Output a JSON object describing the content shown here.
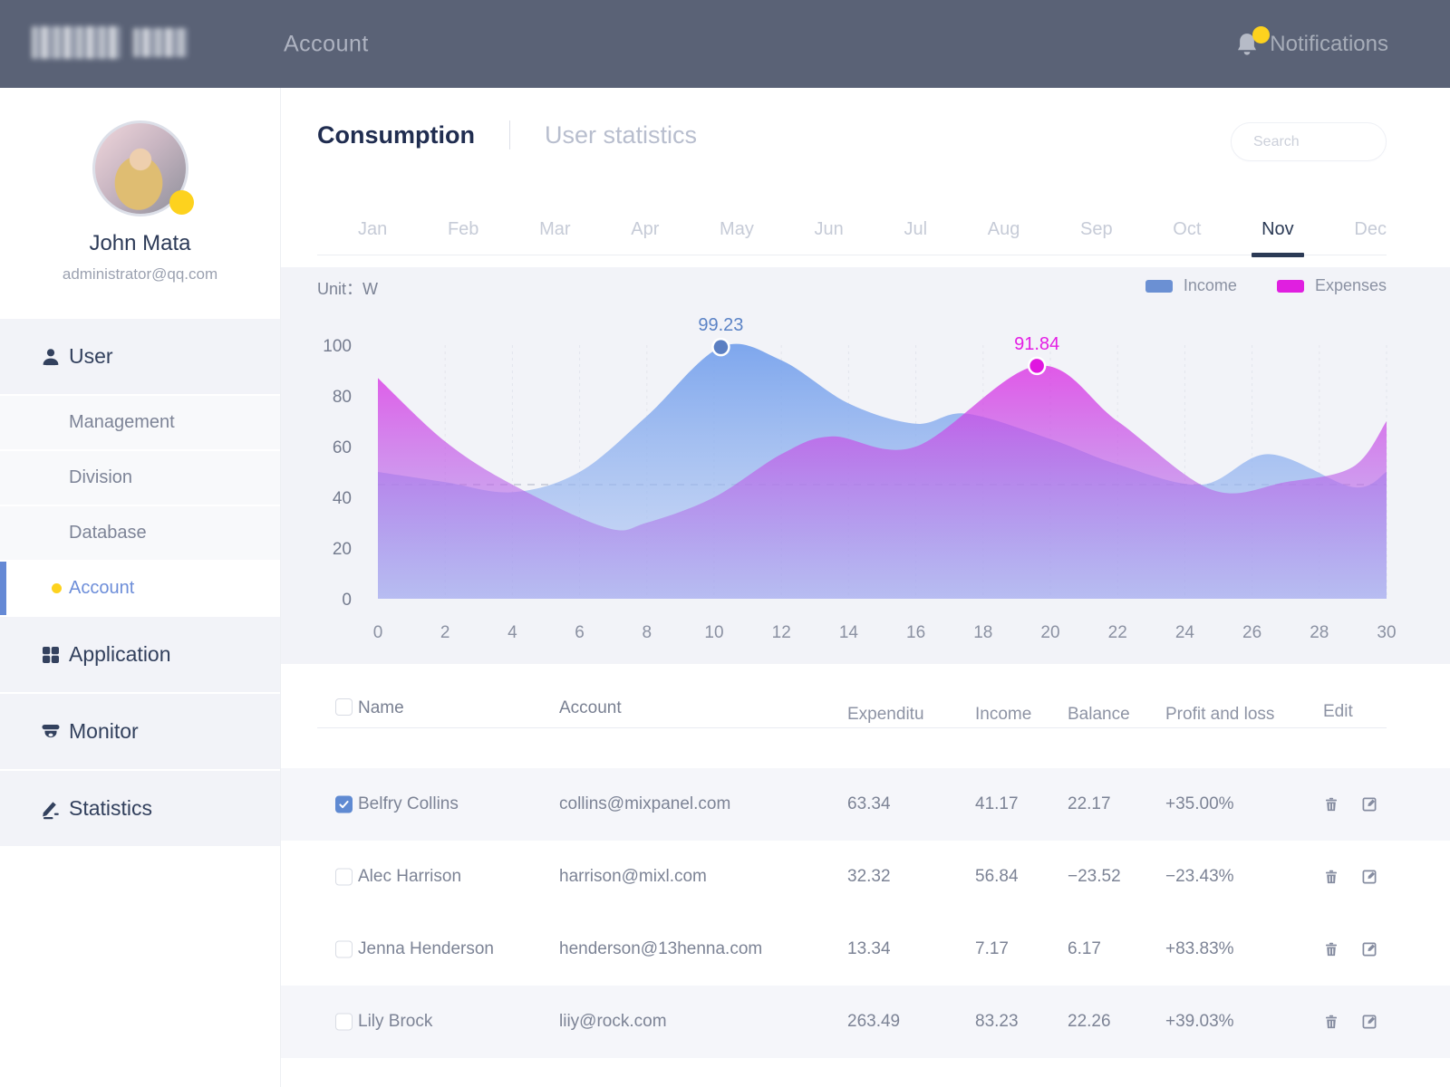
{
  "header": {
    "title": "Account",
    "notifications_label": "Notifications"
  },
  "sidebar": {
    "user": {
      "name": "John Mata",
      "email": "administrator@qq.com"
    },
    "menu": [
      {
        "id": "user",
        "label": "User",
        "type": "section",
        "icon": "user-icon"
      },
      {
        "id": "management",
        "label": "Management",
        "type": "sub"
      },
      {
        "id": "division",
        "label": "Division",
        "type": "sub"
      },
      {
        "id": "database",
        "label": "Database",
        "type": "sub"
      },
      {
        "id": "account",
        "label": "Account",
        "type": "sub",
        "active": true
      },
      {
        "id": "application",
        "label": "Application",
        "type": "section",
        "icon": "grid-icon"
      },
      {
        "id": "monitor",
        "label": "Monitor",
        "type": "section",
        "icon": "camera-icon"
      },
      {
        "id": "statistics",
        "label": "Statistics",
        "type": "section",
        "icon": "stats-icon"
      }
    ]
  },
  "tabs": {
    "active": "Consumption",
    "inactive": "User statistics"
  },
  "search": {
    "placeholder": "Search"
  },
  "months": {
    "items": [
      "Jan",
      "Feb",
      "Mar",
      "Apr",
      "May",
      "Jun",
      "Jul",
      "Aug",
      "Sep",
      "Oct",
      "Nov",
      "Dec"
    ],
    "active": "Nov"
  },
  "chart_data": {
    "type": "area",
    "unit_label": "Unit：W",
    "x_range": [
      0,
      30
    ],
    "y_range": [
      0,
      100
    ],
    "x_ticks": [
      0,
      2,
      4,
      6,
      8,
      10,
      12,
      14,
      16,
      18,
      20,
      22,
      24,
      26,
      28,
      30
    ],
    "y_ticks": [
      0,
      20,
      40,
      60,
      80,
      100
    ],
    "reference_line": 45,
    "grid": "vertical-dashed",
    "legend_position": "top-right",
    "legend": [
      {
        "name": "Income",
        "color": "#6b90d3"
      },
      {
        "name": "Expenses",
        "color": "#e01fe0"
      }
    ],
    "series": [
      {
        "name": "Income",
        "fill_top": "rgba(116,160,236,0.92)",
        "fill_bottom": "rgba(176,198,243,0.50)",
        "dot_color": "#5b7fc2",
        "label_color": "#5b83c6",
        "marker_point": [
          10.2,
          99.23
        ],
        "marker_label": "99.23",
        "points": [
          [
            0,
            50
          ],
          [
            2,
            46
          ],
          [
            4,
            42
          ],
          [
            6,
            50
          ],
          [
            8,
            72
          ],
          [
            10.2,
            99.23
          ],
          [
            12,
            94
          ],
          [
            14,
            77
          ],
          [
            16,
            69
          ],
          [
            17.5,
            73
          ],
          [
            20,
            63
          ],
          [
            22,
            53
          ],
          [
            24.5,
            45
          ],
          [
            26.5,
            57
          ],
          [
            29,
            44
          ],
          [
            30,
            50
          ]
        ]
      },
      {
        "name": "Expenses",
        "fill_top": "rgba(220,49,228,0.80)",
        "fill_bottom": "rgba(152,150,236,0.45)",
        "dot_color": "#e016e0",
        "label_color": "#e41ee4",
        "marker_point": [
          19.6,
          91.84
        ],
        "marker_label": "91.84",
        "points": [
          [
            0,
            87
          ],
          [
            2,
            62
          ],
          [
            4,
            45
          ],
          [
            6.8,
            28
          ],
          [
            8,
            30
          ],
          [
            10,
            40
          ],
          [
            12,
            57
          ],
          [
            13.5,
            64
          ],
          [
            16,
            60
          ],
          [
            19.6,
            91.84
          ],
          [
            22,
            70
          ],
          [
            24.8,
            43
          ],
          [
            27,
            46
          ],
          [
            29,
            52
          ],
          [
            30,
            70
          ]
        ]
      }
    ]
  },
  "table": {
    "headers": [
      "Name",
      "Account",
      "Expenditu",
      "Income",
      "Balance",
      "Profit and loss",
      "Edit"
    ],
    "rows": [
      {
        "checked": true,
        "highlighted": true,
        "name": "Belfry Collins",
        "account": "collins@mixpanel.com",
        "expenditure": "63.34",
        "income": "41.17",
        "balance": "22.17",
        "profit": "+35.00%"
      },
      {
        "checked": false,
        "highlighted": false,
        "name": "Alec Harrison",
        "account": "harrison@mixl.com",
        "expenditure": "32.32",
        "income": "56.84",
        "balance": "−23.52",
        "profit": "−23.43%"
      },
      {
        "checked": false,
        "highlighted": false,
        "name": "Jenna Henderson",
        "account": "henderson@13henna.com",
        "expenditure": "13.34",
        "income": "7.17",
        "balance": "6.17",
        "profit": "+83.83%"
      },
      {
        "checked": false,
        "highlighted": true,
        "name": "Lily Brock",
        "account": "liiy@rock.com",
        "expenditure": "263.49",
        "income": "83.23",
        "balance": "22.26",
        "profit": "+39.03%"
      }
    ]
  },
  "colors": {
    "header_bg": "#5a6276",
    "accent_income": "#6b90d3",
    "accent_expenses": "#e01fe0",
    "badge_yellow": "#fdd21e",
    "active_text": "#2b3a55",
    "chart_bg": "#f2f3f8"
  }
}
